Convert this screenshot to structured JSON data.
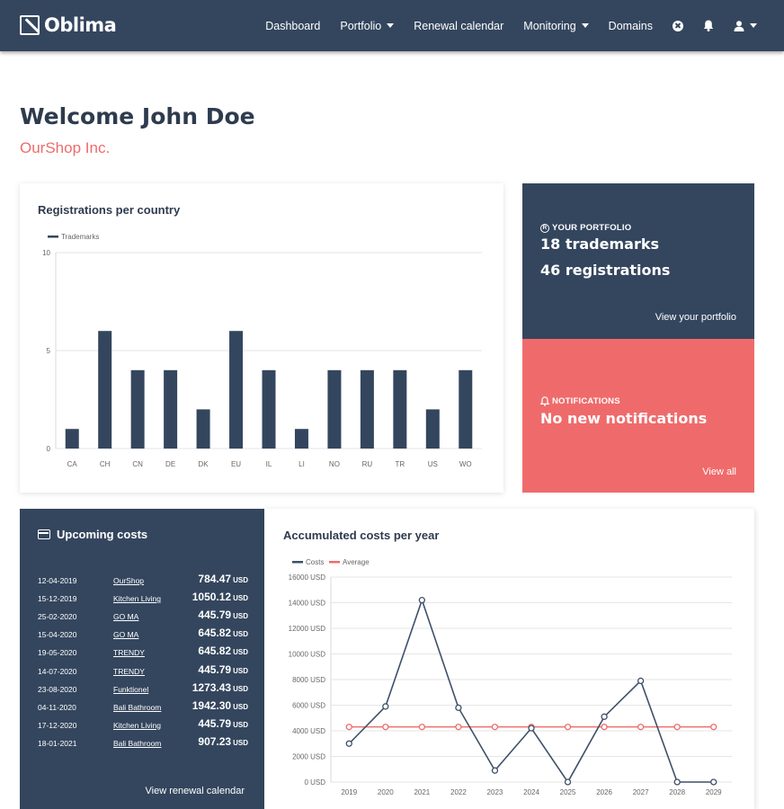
{
  "nav": {
    "logo": "Oblima",
    "items": [
      {
        "label": "Dashboard",
        "dropdown": false
      },
      {
        "label": "Portfolio",
        "dropdown": true
      },
      {
        "label": "Renewal calendar",
        "dropdown": false
      },
      {
        "label": "Monitoring",
        "dropdown": true
      },
      {
        "label": "Domains",
        "dropdown": false
      }
    ]
  },
  "welcome": {
    "title": "Welcome John Doe",
    "company": "OurShop Inc."
  },
  "registrations": {
    "title": "Registrations per country"
  },
  "portfolio": {
    "label": "YOUR PORTFOLIO",
    "trademarks": "18 trademarks",
    "registrations": "46 registrations",
    "link": "View your portfolio"
  },
  "notifications": {
    "label": "NOTIFICATIONS",
    "message": "No new notifications",
    "link": "View all"
  },
  "upcoming": {
    "title": "Upcoming costs",
    "currency": "USD",
    "rows": [
      {
        "date": "12-04-2019",
        "client": "OurShop",
        "amount": "784.47"
      },
      {
        "date": "15-12-2019",
        "client": "Kitchen Living",
        "amount": "1050.12"
      },
      {
        "date": "25-02-2020",
        "client": "GO MA",
        "amount": "445.79"
      },
      {
        "date": "15-04-2020",
        "client": "GO MA",
        "amount": "645.82"
      },
      {
        "date": "19-05-2020",
        "client": "TRENDY",
        "amount": "645.82"
      },
      {
        "date": "14-07-2020",
        "client": "TRENDY",
        "amount": "445.79"
      },
      {
        "date": "23-08-2020",
        "client": "Funktionel",
        "amount": "1273.43"
      },
      {
        "date": "04-11-2020",
        "client": "Bali Bathroom",
        "amount": "1942.30"
      },
      {
        "date": "17-12-2020",
        "client": "Kitchen Living",
        "amount": "445.79"
      },
      {
        "date": "18-01-2021",
        "client": "Bali Bathroom",
        "amount": "907.23"
      }
    ],
    "link": "View renewal calendar"
  },
  "accumulated": {
    "title": "Accumulated costs per year"
  },
  "colors": {
    "navy": "#34465e",
    "coral": "#ef6b6b",
    "line": "#3e5068"
  },
  "chart_data": [
    {
      "type": "bar",
      "title": "Registrations per country",
      "categories": [
        "CA",
        "CH",
        "CN",
        "DE",
        "DK",
        "EU",
        "IL",
        "LI",
        "NO",
        "RU",
        "TR",
        "US",
        "WO"
      ],
      "series": [
        {
          "name": "Trademarks",
          "values": [
            1,
            6,
            4,
            4,
            2,
            6,
            4,
            1,
            4,
            4,
            4,
            2,
            4
          ]
        }
      ],
      "ylim": [
        0,
        10
      ],
      "yticks": [
        0,
        5,
        10
      ],
      "legend": "top-left",
      "grid": true
    },
    {
      "type": "line",
      "title": "Accumulated costs per year",
      "x": [
        "2019",
        "2020",
        "2021",
        "2022",
        "2023",
        "2024",
        "2025",
        "2026",
        "2027",
        "2028",
        "2029"
      ],
      "series": [
        {
          "name": "Costs",
          "values": [
            3000,
            5900,
            14200,
            5800,
            900,
            4200,
            0,
            5100,
            7900,
            0,
            0
          ]
        },
        {
          "name": "Average",
          "values": [
            4300,
            4300,
            4300,
            4300,
            4300,
            4300,
            4300,
            4300,
            4300,
            4300,
            4300
          ]
        }
      ],
      "ylim": [
        0,
        16000
      ],
      "yticks": [
        0,
        2000,
        4000,
        6000,
        8000,
        10000,
        12000,
        14000,
        16000
      ],
      "ytick_suffix": " USD",
      "legend": "top-left",
      "grid": true
    }
  ]
}
